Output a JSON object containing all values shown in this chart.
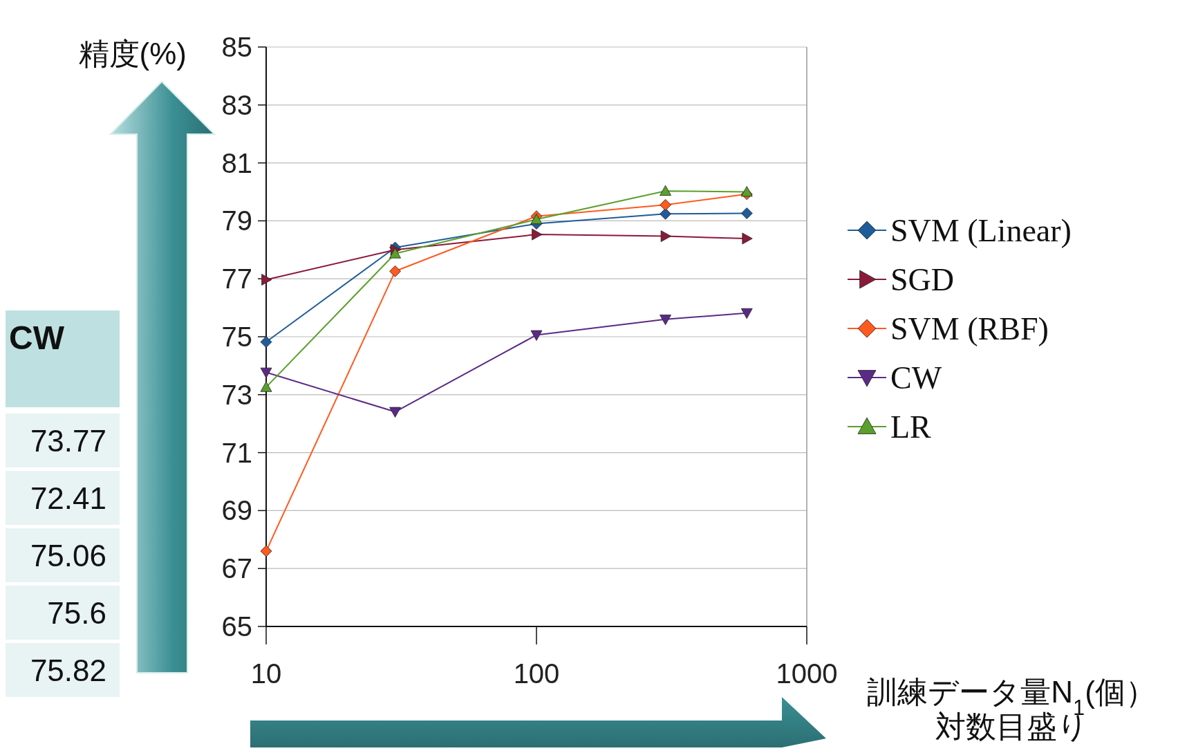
{
  "chart_data": {
    "type": "line",
    "ylabel": "精度(%)",
    "xlabel": "訓練データ量N$_{1}$(個）",
    "annotations": [
      "対数目盛り",
      "CW",
      "73.77",
      "72.41",
      "75.06",
      "75.6",
      "75.82"
    ],
    "log": "x",
    "x": [
      10,
      30,
      100,
      300,
      600
    ],
    "xlim": [
      10,
      1000
    ],
    "xticks": [
      10,
      100,
      1000
    ],
    "ylim": [
      65,
      85
    ],
    "yticks": [
      65,
      67,
      69,
      71,
      73,
      75,
      77,
      79,
      81,
      83,
      85
    ],
    "grid": "y",
    "legend": "right",
    "series": [
      {
        "name": "SVM (Linear)",
        "color": "#1f5c99",
        "marker": "diamond",
        "values": [
          74.82,
          78.08,
          78.9,
          79.24,
          79.26
        ]
      },
      {
        "name": "SGD",
        "color": "#8b1a3a",
        "marker": "triangle-right",
        "values": [
          76.97,
          78.0,
          78.53,
          78.47,
          78.39
        ]
      },
      {
        "name": "SVM (RBF)",
        "color": "#ff5a1f",
        "marker": "diamond",
        "values": [
          67.6,
          77.26,
          79.16,
          79.55,
          79.92
        ]
      },
      {
        "name": "CW",
        "color": "#5b2a86",
        "marker": "triangle-down",
        "values": [
          73.77,
          72.41,
          75.06,
          75.6,
          75.82
        ]
      },
      {
        "name": "LR",
        "color": "#5aa02c",
        "marker": "triangle",
        "values": [
          73.26,
          77.87,
          79.05,
          80.03,
          80.0
        ]
      }
    ]
  }
}
